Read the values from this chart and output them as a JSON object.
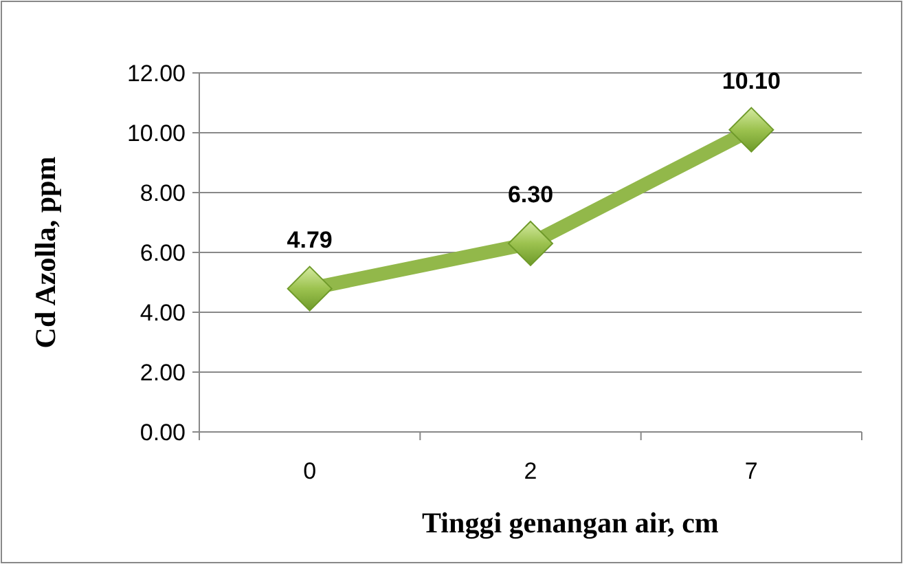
{
  "chart_data": {
    "type": "line",
    "xlabel": "Tinggi genangan air, cm",
    "ylabel": "Cd Azolla, ppm",
    "categories": [
      "0",
      "2",
      "7"
    ],
    "series": [
      {
        "color": "#92b84a",
        "values": [
          4.79,
          6.3,
          10.1
        ],
        "value_labels": [
          "4.79",
          "6.30",
          "10.10"
        ]
      }
    ],
    "ylim": [
      0,
      12
    ],
    "yticks": [
      {
        "value": 0,
        "label": "0.00"
      },
      {
        "value": 2,
        "label": "2.00"
      },
      {
        "value": 4,
        "label": "4.00"
      },
      {
        "value": 6,
        "label": "6.00"
      },
      {
        "value": 8,
        "label": "8.00"
      },
      {
        "value": 10,
        "label": "10.00"
      },
      {
        "value": 12,
        "label": "12.00"
      }
    ],
    "grid": "y",
    "marker": "diamond",
    "line_style": "solid"
  }
}
